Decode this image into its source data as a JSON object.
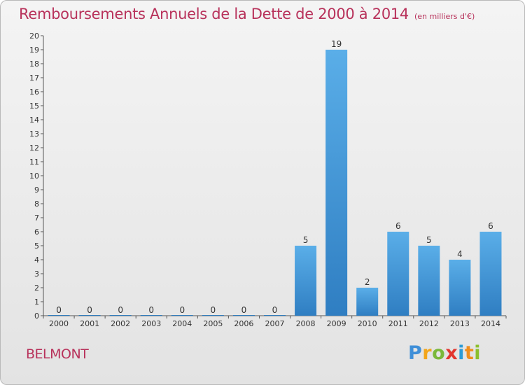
{
  "title": "Remboursements Annuels de la Dette de 2000 à 2014",
  "subtitle": "(en milliers d'€)",
  "commune": "BELMONT",
  "logo": {
    "text": "Proxiti"
  },
  "colors": {
    "title": "#b8325b",
    "bar_top": "#5aaee8",
    "bar_bottom": "#2f7ec2"
  },
  "chart_data": {
    "type": "bar",
    "title": "Remboursements Annuels de la Dette de 2000 à 2014",
    "subtitle": "(en milliers d'€)",
    "categories": [
      "2000",
      "2001",
      "2002",
      "2003",
      "2004",
      "2005",
      "2006",
      "2007",
      "2008",
      "2009",
      "2010",
      "2011",
      "2012",
      "2013",
      "2014"
    ],
    "values": [
      0,
      0,
      0,
      0,
      0,
      0,
      0,
      0,
      5,
      19,
      2,
      6,
      5,
      4,
      6
    ],
    "ylim": [
      0,
      20
    ],
    "yticks": [
      0,
      1,
      2,
      3,
      4,
      5,
      6,
      7,
      8,
      9,
      10,
      11,
      12,
      13,
      14,
      15,
      16,
      17,
      18,
      19,
      20
    ],
    "data_labels": true,
    "grid": false,
    "legend": "none"
  }
}
